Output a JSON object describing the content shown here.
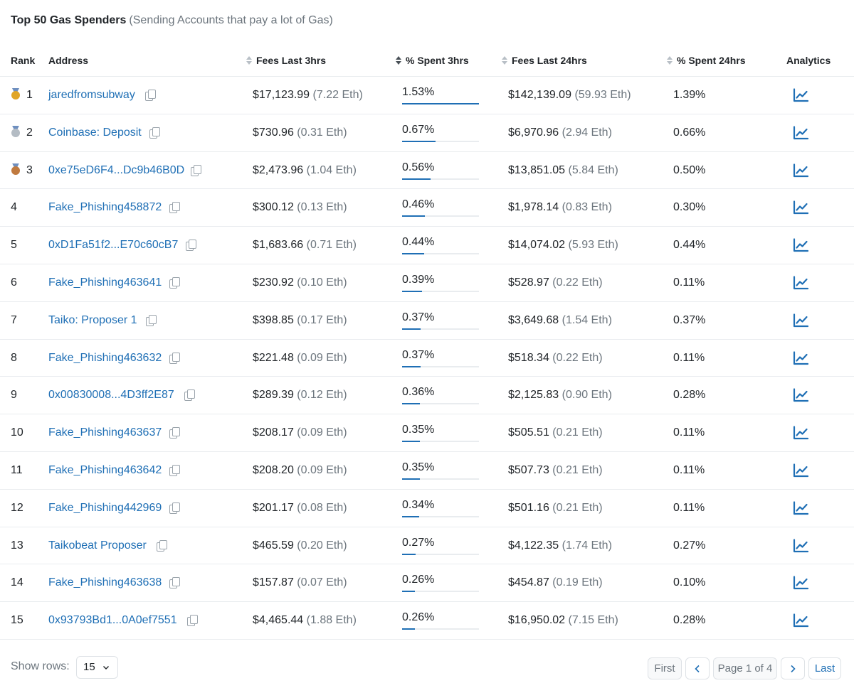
{
  "title": {
    "main": "Top 50 Gas Spenders",
    "sub": "(Sending Accounts that pay a lot of Gas)"
  },
  "columns": {
    "rank": "Rank",
    "address": "Address",
    "fees_3h": "Fees Last 3hrs",
    "pct_3h": "% Spent 3hrs",
    "fees_24h": "Fees Last 24hrs",
    "pct_24h": "% Spent 24hrs",
    "analytics": "Analytics"
  },
  "colors": {
    "link": "#1f6fb5",
    "gold": "#e0a526",
    "silver": "#b4bcc4",
    "bronze": "#c07a3f"
  },
  "rows": [
    {
      "rank": "1",
      "medal": "gold",
      "address": "jaredfromsubway",
      "fees3_usd": "$17,123.99",
      "fees3_eth": "(7.22 Eth)",
      "pct3": "1.53%",
      "pct3_value": 1.53,
      "fees24_usd": "$142,139.09",
      "fees24_eth": "(59.93 Eth)",
      "pct24": "1.39%"
    },
    {
      "rank": "2",
      "medal": "silver",
      "address": "Coinbase: Deposit",
      "fees3_usd": "$730.96",
      "fees3_eth": "(0.31 Eth)",
      "pct3": "0.67%",
      "pct3_value": 0.67,
      "fees24_usd": "$6,970.96",
      "fees24_eth": "(2.94 Eth)",
      "pct24": "0.66%"
    },
    {
      "rank": "3",
      "medal": "bronze",
      "address": "0xe75eD6F4...Dc9b46B0D",
      "fees3_usd": "$2,473.96",
      "fees3_eth": "(1.04 Eth)",
      "pct3": "0.56%",
      "pct3_value": 0.56,
      "fees24_usd": "$13,851.05",
      "fees24_eth": "(5.84 Eth)",
      "pct24": "0.50%"
    },
    {
      "rank": "4",
      "medal": "",
      "address": "Fake_Phishing458872",
      "fees3_usd": "$300.12",
      "fees3_eth": "(0.13 Eth)",
      "pct3": "0.46%",
      "pct3_value": 0.46,
      "fees24_usd": "$1,978.14",
      "fees24_eth": "(0.83 Eth)",
      "pct24": "0.30%"
    },
    {
      "rank": "5",
      "medal": "",
      "address": "0xD1Fa51f2...E70c60cB7",
      "fees3_usd": "$1,683.66",
      "fees3_eth": "(0.71 Eth)",
      "pct3": "0.44%",
      "pct3_value": 0.44,
      "fees24_usd": "$14,074.02",
      "fees24_eth": "(5.93 Eth)",
      "pct24": "0.44%"
    },
    {
      "rank": "6",
      "medal": "",
      "address": "Fake_Phishing463641",
      "fees3_usd": "$230.92",
      "fees3_eth": "(0.10 Eth)",
      "pct3": "0.39%",
      "pct3_value": 0.39,
      "fees24_usd": "$528.97",
      "fees24_eth": "(0.22 Eth)",
      "pct24": "0.11%"
    },
    {
      "rank": "7",
      "medal": "",
      "address": "Taiko: Proposer 1",
      "fees3_usd": "$398.85",
      "fees3_eth": "(0.17 Eth)",
      "pct3": "0.37%",
      "pct3_value": 0.37,
      "fees24_usd": "$3,649.68",
      "fees24_eth": "(1.54 Eth)",
      "pct24": "0.37%"
    },
    {
      "rank": "8",
      "medal": "",
      "address": "Fake_Phishing463632",
      "fees3_usd": "$221.48",
      "fees3_eth": "(0.09 Eth)",
      "pct3": "0.37%",
      "pct3_value": 0.37,
      "fees24_usd": "$518.34",
      "fees24_eth": "(0.22 Eth)",
      "pct24": "0.11%"
    },
    {
      "rank": "9",
      "medal": "",
      "address": "0x00830008...4D3ff2E87",
      "fees3_usd": "$289.39",
      "fees3_eth": "(0.12 Eth)",
      "pct3": "0.36%",
      "pct3_value": 0.36,
      "fees24_usd": "$2,125.83",
      "fees24_eth": "(0.90 Eth)",
      "pct24": "0.28%"
    },
    {
      "rank": "10",
      "medal": "",
      "address": "Fake_Phishing463637",
      "fees3_usd": "$208.17",
      "fees3_eth": "(0.09 Eth)",
      "pct3": "0.35%",
      "pct3_value": 0.35,
      "fees24_usd": "$505.51",
      "fees24_eth": "(0.21 Eth)",
      "pct24": "0.11%"
    },
    {
      "rank": "11",
      "medal": "",
      "address": "Fake_Phishing463642",
      "fees3_usd": "$208.20",
      "fees3_eth": "(0.09 Eth)",
      "pct3": "0.35%",
      "pct3_value": 0.35,
      "fees24_usd": "$507.73",
      "fees24_eth": "(0.21 Eth)",
      "pct24": "0.11%"
    },
    {
      "rank": "12",
      "medal": "",
      "address": "Fake_Phishing442969",
      "fees3_usd": "$201.17",
      "fees3_eth": "(0.08 Eth)",
      "pct3": "0.34%",
      "pct3_value": 0.34,
      "fees24_usd": "$501.16",
      "fees24_eth": "(0.21 Eth)",
      "pct24": "0.11%"
    },
    {
      "rank": "13",
      "medal": "",
      "address": "Taikobeat Proposer",
      "fees3_usd": "$465.59",
      "fees3_eth": "(0.20 Eth)",
      "pct3": "0.27%",
      "pct3_value": 0.27,
      "fees24_usd": "$4,122.35",
      "fees24_eth": "(1.74 Eth)",
      "pct24": "0.27%"
    },
    {
      "rank": "14",
      "medal": "",
      "address": "Fake_Phishing463638",
      "fees3_usd": "$157.87",
      "fees3_eth": "(0.07 Eth)",
      "pct3": "0.26%",
      "pct3_value": 0.26,
      "fees24_usd": "$454.87",
      "fees24_eth": "(0.19 Eth)",
      "pct24": "0.10%"
    },
    {
      "rank": "15",
      "medal": "",
      "address": "0x93793Bd1...0A0ef7551",
      "fees3_usd": "$4,465.44",
      "fees3_eth": "(1.88 Eth)",
      "pct3": "0.26%",
      "pct3_value": 0.26,
      "fees24_usd": "$16,950.02",
      "fees24_eth": "(7.15 Eth)",
      "pct24": "0.28%"
    }
  ],
  "row_icons": {
    "copy": "copy-icon",
    "analytics": "line-chart-icon"
  },
  "footer": {
    "show_rows_label": "Show rows:",
    "rows_per_page": "15",
    "first": "First",
    "page_info": "Page 1 of 4",
    "last": "Last"
  }
}
